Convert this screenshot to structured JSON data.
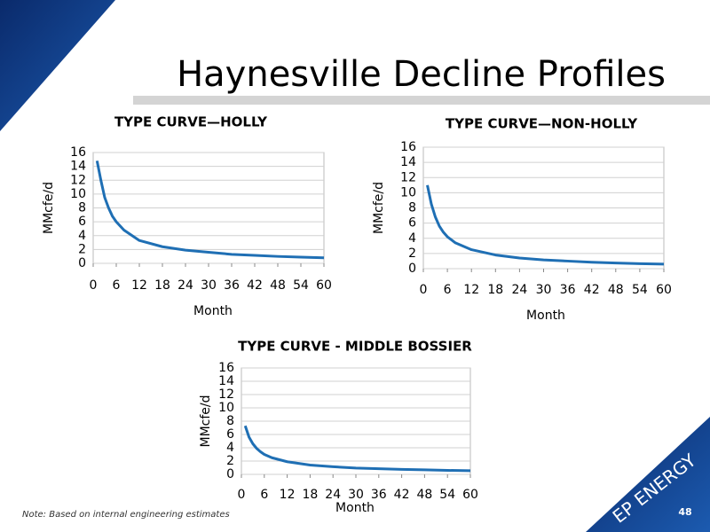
{
  "title": "Haynesville Decline Profiles",
  "note": "Note: Based on internal engineering estimates",
  "page_number": "48",
  "logo": "EP ENERGY",
  "chart_data": [
    {
      "type": "line",
      "title": "TYPE CURVE—HOLLY",
      "x_label": "Month",
      "y_label": "MMcfe/d",
      "x": [
        1,
        2,
        3,
        4,
        5,
        6,
        8,
        12,
        18,
        24,
        30,
        36,
        42,
        48,
        54,
        60
      ],
      "series": [
        {
          "color": "#1f6fb4",
          "values": [
            14.8,
            12,
            9.5,
            8,
            6.8,
            6,
            4.8,
            3.3,
            2.4,
            1.9,
            1.6,
            1.3,
            1.15,
            1.0,
            0.9,
            0.8
          ]
        }
      ],
      "xlim": [
        0,
        60
      ],
      "xticks": [
        0,
        6,
        12,
        18,
        24,
        30,
        36,
        42,
        48,
        54,
        60
      ],
      "ylim": [
        0,
        16
      ],
      "yticks": [
        0,
        2,
        4,
        6,
        8,
        10,
        12,
        14,
        16
      ],
      "grid": true
    },
    {
      "type": "line",
      "title": "TYPE CURVE—NON-HOLLY",
      "x_label": "Month",
      "y_label": "MMcfe/d",
      "x": [
        1,
        2,
        3,
        4,
        5,
        6,
        8,
        12,
        18,
        24,
        30,
        36,
        42,
        48,
        54,
        60
      ],
      "series": [
        {
          "color": "#1f6fb4",
          "values": [
            11,
            8.5,
            6.8,
            5.6,
            4.8,
            4.2,
            3.4,
            2.5,
            1.8,
            1.4,
            1.15,
            1.0,
            0.85,
            0.75,
            0.65,
            0.6
          ]
        }
      ],
      "xlim": [
        0,
        60
      ],
      "xticks": [
        0,
        6,
        12,
        18,
        24,
        30,
        36,
        42,
        48,
        54,
        60
      ],
      "ylim": [
        0,
        16
      ],
      "yticks": [
        0,
        2,
        4,
        6,
        8,
        10,
        12,
        14,
        16
      ],
      "grid": true
    },
    {
      "type": "line",
      "title": "TYPE CURVE - MIDDLE BOSSIER",
      "x_label": "Month",
      "y_label": "MMcfe/d",
      "x": [
        1,
        2,
        3,
        4,
        5,
        6,
        8,
        12,
        18,
        24,
        30,
        36,
        42,
        48,
        54,
        60
      ],
      "series": [
        {
          "color": "#1f6fb4",
          "values": [
            7.3,
            5.6,
            4.6,
            3.9,
            3.4,
            3.0,
            2.5,
            1.9,
            1.4,
            1.15,
            0.95,
            0.85,
            0.75,
            0.68,
            0.6,
            0.55
          ]
        }
      ],
      "xlim": [
        0,
        60
      ],
      "xticks": [
        0,
        6,
        12,
        18,
        24,
        30,
        36,
        42,
        48,
        54,
        60
      ],
      "ylim": [
        0,
        16
      ],
      "yticks": [
        0,
        2,
        4,
        6,
        8,
        10,
        12,
        14,
        16
      ],
      "grid": true
    }
  ]
}
